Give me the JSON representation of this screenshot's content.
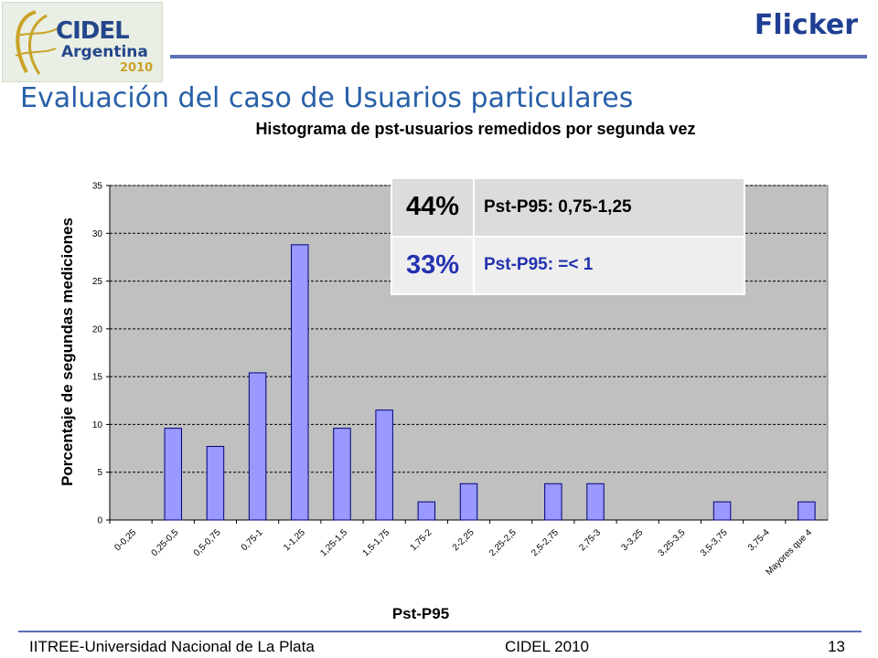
{
  "header": {
    "logo": {
      "line1": "CIDEL",
      "line2": "Argentina",
      "year": "2010"
    },
    "slide_title": "Flicker",
    "subtitle": "Evaluación del caso de Usuarios particulares"
  },
  "stats": [
    {
      "percent": "44%",
      "label": "Pst-P95: 0,75-1,25"
    },
    {
      "percent": "33%",
      "label": "Pst-P95: =< 1"
    }
  ],
  "footer": {
    "left": "IITREE-Universidad Nacional de La Plata",
    "center": "CIDEL 2010",
    "page": "13"
  },
  "colors": {
    "bar_fill": "#9999ff",
    "plot_bg": "#c0c0c0",
    "accent": "#1f3f93",
    "subtitle": "#2860a8"
  },
  "chart_data": {
    "type": "bar",
    "title": "Histograma de pst-usuarios remedidos por segunda vez",
    "xlabel": "Pst-P95",
    "ylabel": "Porcentaje de segundas mediciones",
    "ylim": [
      0,
      35
    ],
    "yticks": [
      0,
      5,
      10,
      15,
      20,
      25,
      30,
      35
    ],
    "grid": true,
    "categories": [
      "0-0,25",
      "0,25-0,5",
      "0,5-0,75",
      "0,75-1",
      "1-1,25",
      "1,25-1,5",
      "1,5-1,75",
      "1,75-2",
      "2-2,25",
      "2,25-2,5",
      "2,5-2,75",
      "2,75-3",
      "3-3,25",
      "3,25-3,5",
      "3,5-3,75",
      "3,75-4",
      "Mayores que 4"
    ],
    "values": [
      0,
      9.6,
      7.7,
      15.4,
      28.8,
      9.6,
      11.5,
      1.9,
      3.8,
      0,
      3.8,
      3.8,
      0,
      0,
      1.9,
      0,
      1.9
    ]
  }
}
